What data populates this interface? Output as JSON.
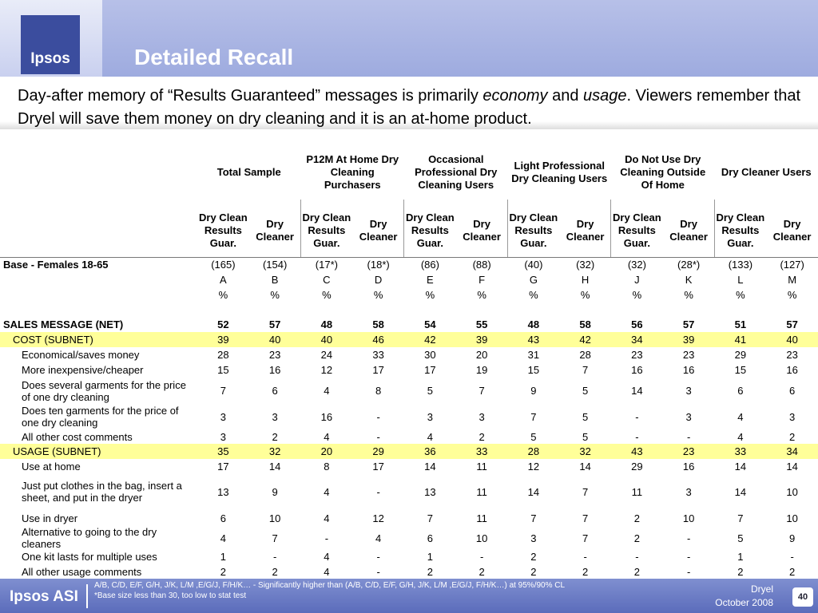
{
  "header": {
    "logo": "Ipsos",
    "title": "Detailed Recall"
  },
  "subtitle": [
    "Day-after memory of “Results Guaranteed” messages is primarily ",
    "economy",
    " and ",
    "usage",
    ".  Viewers remember that Dryel will save them money on dry cleaning and it is an at-home product."
  ],
  "table": {
    "groups": [
      "Total Sample",
      "P12M At Home Dry Cleaning Purchasers",
      "Occasional Professional Dry Cleaning Users",
      "Light Professional Dry Cleaning Users",
      "Do Not Use Dry Cleaning Outside Of Home",
      "Dry Cleaner Users"
    ],
    "columns": [
      "Dry Clean Results Guar.",
      "Dry Cleaner",
      "Dry Clean Results Guar.",
      "Dry Cleaner",
      "Dry Clean Results Guar.",
      "Dry Cleaner",
      "Dry Clean Results Guar.",
      "Dry Cleaner",
      "Dry Clean Results Guar.",
      "Dry Cleaner",
      "Dry Clean Results Guar.",
      "Dry Cleaner"
    ],
    "base": {
      "label": "Base - Females 18-65",
      "values": [
        "(165)",
        "(154)",
        "(17*)",
        "(18*)",
        "(86)",
        "(88)",
        "(40)",
        "(32)",
        "(32)",
        "(28*)",
        "(133)",
        "(127)"
      ]
    },
    "letters": [
      "A",
      "B",
      "C",
      "D",
      "E",
      "F",
      "G",
      "H",
      "J",
      "K",
      "L",
      "M"
    ],
    "units": [
      "%",
      "%",
      "%",
      "%",
      "%",
      "%",
      "%",
      "%",
      "%",
      "%",
      "%",
      "%"
    ],
    "net": {
      "label": "SALES MESSAGE (NET)",
      "values": [
        52,
        57,
        48,
        58,
        54,
        55,
        48,
        58,
        56,
        57,
        51,
        57
      ]
    },
    "subnets": [
      {
        "label": "COST (SUBNET)",
        "values": [
          39,
          40,
          40,
          46,
          42,
          39,
          43,
          42,
          34,
          39,
          41,
          40
        ],
        "items": [
          {
            "label": "Economical/saves money",
            "values": [
              28,
              23,
              24,
              33,
              30,
              20,
              31,
              28,
              23,
              23,
              29,
              23
            ]
          },
          {
            "label": "More inexpensive/cheaper",
            "values": [
              15,
              16,
              12,
              17,
              17,
              19,
              15,
              7,
              16,
              16,
              15,
              16
            ]
          },
          {
            "label": "Does several garments for the price of one dry cleaning",
            "values": [
              7,
              6,
              4,
              8,
              5,
              7,
              9,
              5,
              14,
              3,
              6,
              6
            ]
          },
          {
            "label": "Does ten garments for the price of one dry cleaning",
            "values": [
              3,
              3,
              16,
              "-",
              3,
              3,
              7,
              5,
              "-",
              3,
              4,
              3
            ]
          },
          {
            "label": "All other cost comments",
            "values": [
              3,
              2,
              4,
              "-",
              4,
              2,
              5,
              5,
              "-",
              "-",
              4,
              2
            ]
          }
        ]
      },
      {
        "label": "USAGE (SUBNET)",
        "values": [
          35,
          32,
          20,
          29,
          36,
          33,
          28,
          32,
          43,
          23,
          33,
          34
        ],
        "items": [
          {
            "label": "Use at home",
            "values": [
              17,
              14,
              8,
              17,
              14,
              11,
              12,
              14,
              29,
              16,
              14,
              14
            ]
          },
          {
            "label": "Just put clothes in the bag, insert a sheet, and put in the dryer",
            "values": [
              13,
              9,
              4,
              "-",
              13,
              11,
              14,
              7,
              11,
              3,
              14,
              10
            ]
          },
          {
            "label": "Use in dryer",
            "values": [
              6,
              10,
              4,
              12,
              7,
              11,
              7,
              7,
              2,
              10,
              7,
              10
            ]
          },
          {
            "label": "Alternative to going to the dry cleaners",
            "values": [
              4,
              7,
              "-",
              4,
              6,
              10,
              3,
              7,
              2,
              "-",
              5,
              9
            ]
          },
          {
            "label": "One kit lasts for multiple uses",
            "values": [
              1,
              "-",
              4,
              "-",
              1,
              "-",
              2,
              "-",
              "-",
              "-",
              1,
              "-"
            ]
          },
          {
            "label": "All other usage comments",
            "values": [
              2,
              2,
              4,
              "-",
              2,
              2,
              2,
              2,
              2,
              "-",
              2,
              2
            ]
          }
        ]
      }
    ]
  },
  "footer": {
    "logo": "Ipsos ASI",
    "notes": [
      "A/B, C/D, E/F, G/H, J/K, L/M ,E/G/J, F/H/K… - Significantly higher than (A/B, C/D, E/F, G/H, J/K, L/M ,E/G/J, F/H/K…) at 95%/90% CL",
      "*Base size less than 30, too low to stat test"
    ],
    "brand": "Dryel",
    "date": "October 2008",
    "page": "40"
  }
}
